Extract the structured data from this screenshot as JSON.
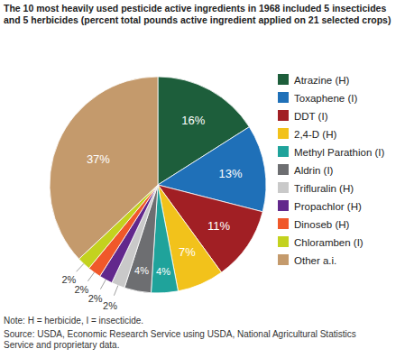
{
  "chart_data": {
    "type": "pie",
    "title": "The 10 most heavily used pesticide active ingredients in 1968 included 5 insecticides and 5 herbicides (percent total pounds active ingredient applied on 21 selected crops)",
    "categories": [
      "Atrazine (H)",
      "Toxaphene (I)",
      "DDT (I)",
      "2,4-D (H)",
      "Methyl Parathion (I)",
      "Aldrin (I)",
      "Trifluralin (H)",
      "Propachlor (H)",
      "Dinoseb (H)",
      "Chloramben (I)",
      "Other a.i."
    ],
    "values": [
      16,
      13,
      11,
      7,
      4,
      4,
      2,
      2,
      2,
      2,
      37
    ],
    "value_labels": [
      "16%",
      "13%",
      "11%",
      "7%",
      "4%",
      "4%",
      "2%",
      "2%",
      "2%",
      "2%",
      "37%"
    ],
    "colors": [
      "#1d5e3b",
      "#1f70b8",
      "#a11f24",
      "#f2c21b",
      "#1fa39b",
      "#6d6e71",
      "#c9c9c9",
      "#62288c",
      "#f0582a",
      "#c3d21f",
      "#c49a6c"
    ],
    "data_labels": true,
    "legend": "right",
    "notes": [
      "Note: H = herbicide, I = insecticide.",
      "Source: USDA, Economic Research Service using USDA, National Agricultural Statistics Service and proprietary data."
    ]
  }
}
